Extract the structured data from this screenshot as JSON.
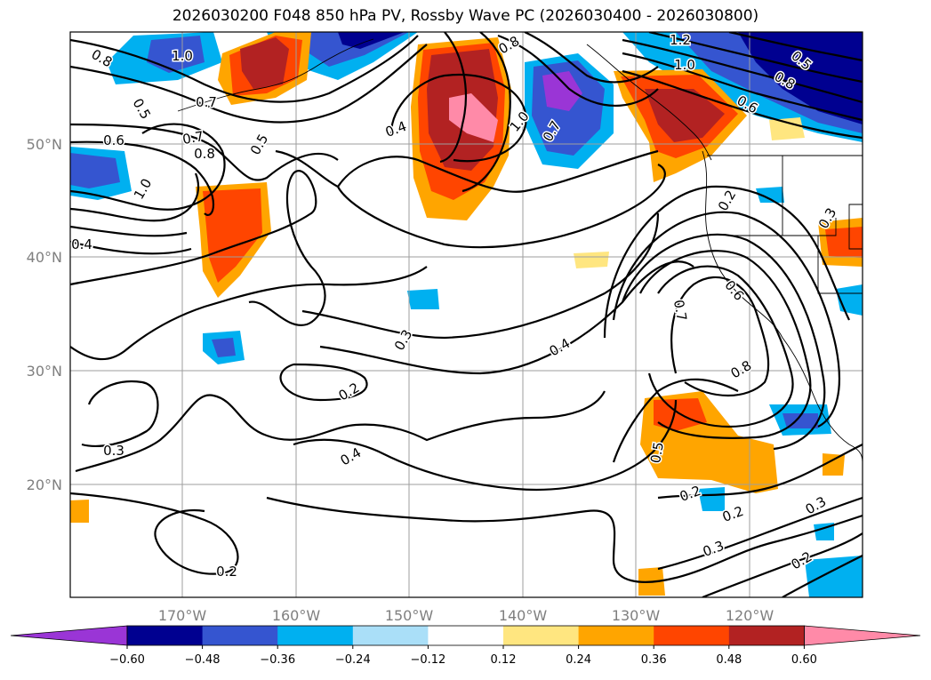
{
  "title": "2026030200 F048 850 hPa PV, Rossby Wave PC (2026030400 - 2026030800)",
  "axes": {
    "lon_ticks": [
      "170°W",
      "160°W",
      "150°W",
      "140°W",
      "130°W",
      "120°W"
    ],
    "lat_ticks": [
      "50°N",
      "40°N",
      "30°N",
      "20°N"
    ]
  },
  "colorbar": {
    "ticks": [
      "−0.60",
      "−0.48",
      "−0.36",
      "−0.24",
      "−0.12",
      "0.12",
      "0.24",
      "0.36",
      "0.48",
      "0.60"
    ],
    "colors": [
      "#9a35d6",
      "#000090",
      "#3555d0",
      "#00b0f0",
      "#aadff8",
      "#ffffff",
      "#ffe680",
      "#ffa500",
      "#ff4500",
      "#b22222",
      "#ff8aa8"
    ]
  },
  "contour_labels": [
    "0.8",
    "1.0",
    "0.5",
    "0.7",
    "1.2",
    "1.0",
    "0.5",
    "0.8",
    "0.6",
    "0.4",
    "0.8",
    "1.0",
    "0.7",
    "0.6",
    "0.7",
    "0.8",
    "0.5",
    "1.0",
    "0.4",
    "0.2",
    "0.3",
    "0.6",
    "0.7",
    "0.8",
    "0.3",
    "0.2",
    "0.4",
    "0.3",
    "0.4",
    "0.5",
    "0.2",
    "0.2",
    "0.3",
    "0.3",
    "0.2",
    "0.2"
  ]
}
